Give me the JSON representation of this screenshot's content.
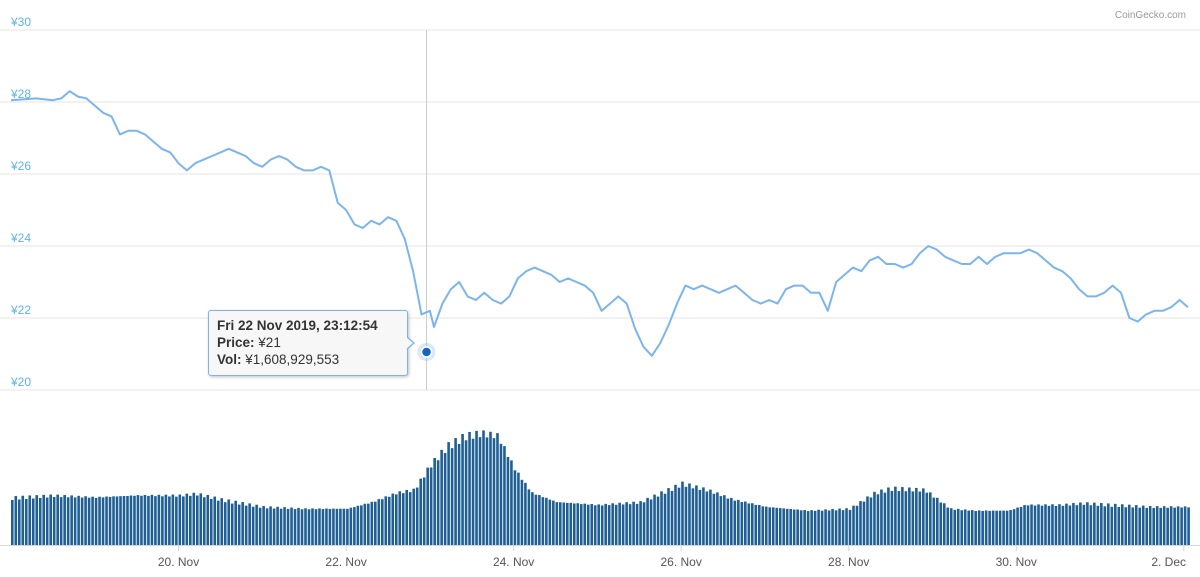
{
  "credit": "CoinGecko.com",
  "colors": {
    "line": "#7cb5ec",
    "volume": "#1f5f94",
    "ytick": "#5fb3e8",
    "grid": "#e6e6e6",
    "crosshair": "#cccccc",
    "marker": "#1565c0"
  },
  "tooltip": {
    "date": "Fri 22 Nov 2019, 23:12:54",
    "price_label": "Price:",
    "price_value": "¥21",
    "vol_label": "Vol:",
    "vol_value": "¥1,608,929,553"
  },
  "chart_data": {
    "type": "line",
    "y_ticks": [
      "¥20",
      "¥22",
      "¥24",
      "¥26",
      "¥28",
      "¥30"
    ],
    "ylim": [
      20,
      30
    ],
    "x_ticks": [
      "20. Nov",
      "22. Nov",
      "24. Nov",
      "26. Nov",
      "28. Nov",
      "30. Nov",
      "2. Dec"
    ],
    "x_tick_days": [
      2,
      4,
      6,
      8,
      10,
      12,
      14
    ],
    "x_range_days": [
      0.0,
      14.05
    ],
    "grid": true,
    "price": [
      [
        0.0,
        28.05
      ],
      [
        0.3,
        28.1
      ],
      [
        0.5,
        28.05
      ],
      [
        0.6,
        28.1
      ],
      [
        0.7,
        28.3
      ],
      [
        0.8,
        28.15
      ],
      [
        0.9,
        28.1
      ],
      [
        1.0,
        27.9
      ],
      [
        1.1,
        27.7
      ],
      [
        1.2,
        27.6
      ],
      [
        1.3,
        27.1
      ],
      [
        1.4,
        27.2
      ],
      [
        1.5,
        27.2
      ],
      [
        1.6,
        27.1
      ],
      [
        1.7,
        26.9
      ],
      [
        1.8,
        26.7
      ],
      [
        1.9,
        26.6
      ],
      [
        2.0,
        26.3
      ],
      [
        2.1,
        26.1
      ],
      [
        2.2,
        26.3
      ],
      [
        2.3,
        26.4
      ],
      [
        2.4,
        26.5
      ],
      [
        2.5,
        26.6
      ],
      [
        2.6,
        26.7
      ],
      [
        2.7,
        26.6
      ],
      [
        2.8,
        26.5
      ],
      [
        2.9,
        26.3
      ],
      [
        3.0,
        26.2
      ],
      [
        3.1,
        26.4
      ],
      [
        3.2,
        26.5
      ],
      [
        3.3,
        26.4
      ],
      [
        3.4,
        26.2
      ],
      [
        3.5,
        26.1
      ],
      [
        3.6,
        26.1
      ],
      [
        3.7,
        26.2
      ],
      [
        3.8,
        26.1
      ],
      [
        3.9,
        25.2
      ],
      [
        4.0,
        25.0
      ],
      [
        4.1,
        24.6
      ],
      [
        4.2,
        24.5
      ],
      [
        4.3,
        24.7
      ],
      [
        4.4,
        24.6
      ],
      [
        4.5,
        24.8
      ],
      [
        4.6,
        24.7
      ],
      [
        4.7,
        24.2
      ],
      [
        4.8,
        23.3
      ],
      [
        4.9,
        22.1
      ],
      [
        5.0,
        22.2
      ],
      [
        5.05,
        21.75
      ],
      [
        5.15,
        22.4
      ],
      [
        5.25,
        22.8
      ],
      [
        5.35,
        23.0
      ],
      [
        5.45,
        22.6
      ],
      [
        5.55,
        22.5
      ],
      [
        5.65,
        22.7
      ],
      [
        5.75,
        22.5
      ],
      [
        5.85,
        22.4
      ],
      [
        5.95,
        22.6
      ],
      [
        6.05,
        23.1
      ],
      [
        6.15,
        23.3
      ],
      [
        6.25,
        23.4
      ],
      [
        6.35,
        23.3
      ],
      [
        6.45,
        23.2
      ],
      [
        6.55,
        23.0
      ],
      [
        6.65,
        23.1
      ],
      [
        6.75,
        23.0
      ],
      [
        6.85,
        22.9
      ],
      [
        6.95,
        22.7
      ],
      [
        7.05,
        22.2
      ],
      [
        7.15,
        22.4
      ],
      [
        7.25,
        22.6
      ],
      [
        7.35,
        22.4
      ],
      [
        7.45,
        21.7
      ],
      [
        7.55,
        21.2
      ],
      [
        7.65,
        20.95
      ],
      [
        7.75,
        21.3
      ],
      [
        7.85,
        21.8
      ],
      [
        7.95,
        22.4
      ],
      [
        8.05,
        22.9
      ],
      [
        8.15,
        22.8
      ],
      [
        8.25,
        22.9
      ],
      [
        8.35,
        22.8
      ],
      [
        8.45,
        22.7
      ],
      [
        8.55,
        22.8
      ],
      [
        8.65,
        22.9
      ],
      [
        8.75,
        22.7
      ],
      [
        8.85,
        22.5
      ],
      [
        8.95,
        22.4
      ],
      [
        9.05,
        22.5
      ],
      [
        9.15,
        22.4
      ],
      [
        9.25,
        22.8
      ],
      [
        9.35,
        22.9
      ],
      [
        9.45,
        22.9
      ],
      [
        9.55,
        22.7
      ],
      [
        9.65,
        22.7
      ],
      [
        9.75,
        22.2
      ],
      [
        9.85,
        23.0
      ],
      [
        9.95,
        23.2
      ],
      [
        10.05,
        23.4
      ],
      [
        10.15,
        23.3
      ],
      [
        10.25,
        23.6
      ],
      [
        10.35,
        23.7
      ],
      [
        10.45,
        23.5
      ],
      [
        10.55,
        23.5
      ],
      [
        10.65,
        23.4
      ],
      [
        10.75,
        23.5
      ],
      [
        10.85,
        23.8
      ],
      [
        10.95,
        24.0
      ],
      [
        11.05,
        23.9
      ],
      [
        11.15,
        23.7
      ],
      [
        11.25,
        23.6
      ],
      [
        11.35,
        23.5
      ],
      [
        11.45,
        23.5
      ],
      [
        11.55,
        23.7
      ],
      [
        11.65,
        23.5
      ],
      [
        11.75,
        23.7
      ],
      [
        11.85,
        23.8
      ],
      [
        11.95,
        23.8
      ],
      [
        12.05,
        23.8
      ],
      [
        12.15,
        23.9
      ],
      [
        12.25,
        23.8
      ],
      [
        12.35,
        23.6
      ],
      [
        12.45,
        23.4
      ],
      [
        12.55,
        23.3
      ],
      [
        12.65,
        23.1
      ],
      [
        12.75,
        22.8
      ],
      [
        12.85,
        22.6
      ],
      [
        12.95,
        22.6
      ],
      [
        13.05,
        22.7
      ],
      [
        13.15,
        22.9
      ],
      [
        13.25,
        22.7
      ],
      [
        13.35,
        22.0
      ],
      [
        13.45,
        21.9
      ],
      [
        13.55,
        22.1
      ],
      [
        13.65,
        22.2
      ],
      [
        13.75,
        22.2
      ],
      [
        13.85,
        22.3
      ],
      [
        13.95,
        22.5
      ],
      [
        14.05,
        22.3
      ]
    ],
    "volume_profile": [
      [
        0.0,
        50
      ],
      [
        0.5,
        52
      ],
      [
        1.0,
        50
      ],
      [
        1.5,
        52
      ],
      [
        2.0,
        52
      ],
      [
        2.2,
        54
      ],
      [
        2.5,
        48
      ],
      [
        3.0,
        40
      ],
      [
        3.5,
        38
      ],
      [
        4.0,
        38
      ],
      [
        4.3,
        45
      ],
      [
        4.6,
        55
      ],
      [
        4.8,
        58
      ],
      [
        5.0,
        85
      ],
      [
        5.2,
        105
      ],
      [
        5.4,
        115
      ],
      [
        5.6,
        118
      ],
      [
        5.8,
        115
      ],
      [
        6.0,
        80
      ],
      [
        6.2,
        55
      ],
      [
        6.5,
        45
      ],
      [
        7.0,
        42
      ],
      [
        7.5,
        45
      ],
      [
        8.0,
        65
      ],
      [
        8.3,
        58
      ],
      [
        8.6,
        48
      ],
      [
        9.0,
        40
      ],
      [
        9.5,
        36
      ],
      [
        10.0,
        38
      ],
      [
        10.3,
        55
      ],
      [
        10.5,
        60
      ],
      [
        10.9,
        58
      ],
      [
        11.2,
        38
      ],
      [
        11.5,
        36
      ],
      [
        11.9,
        36
      ],
      [
        12.1,
        42
      ],
      [
        12.5,
        42
      ],
      [
        12.8,
        44
      ],
      [
        13.2,
        42
      ],
      [
        13.6,
        40
      ],
      [
        14.05,
        40
      ]
    ],
    "highlight_point": {
      "day": 4.96,
      "price": 21
    }
  }
}
